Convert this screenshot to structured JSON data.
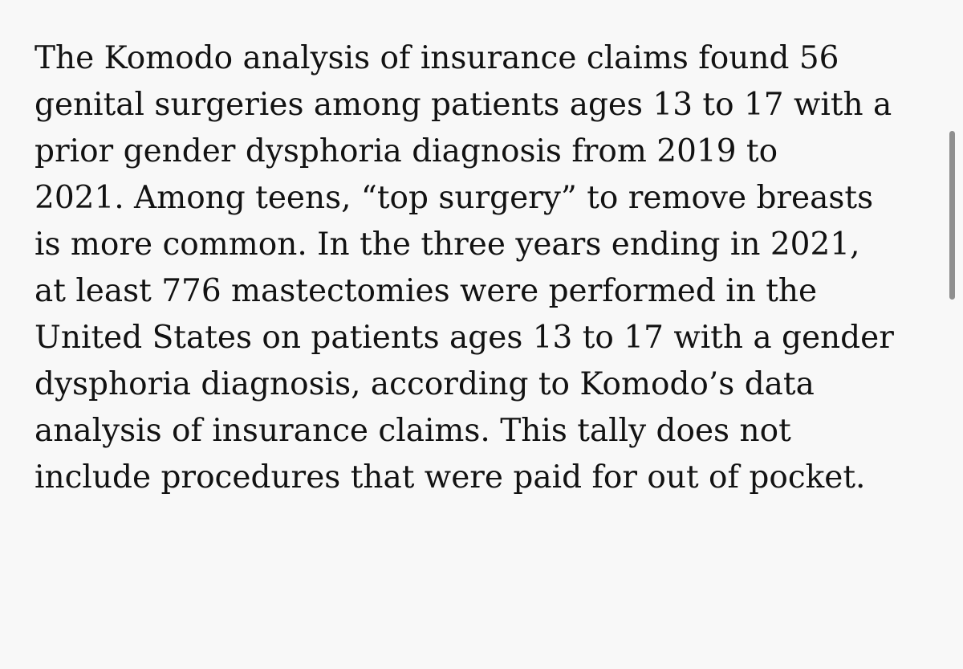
{
  "article": {
    "paragraph_lines": [
      "The Komodo analysis of insurance claims found 56",
      "genital surgeries among patients ages 13 to 17 with a",
      "prior gender dysphoria diagnosis from 2019 to",
      "2021. Among teens, “top surgery” to remove breasts",
      "is more common. In the three years ending in 2021,",
      "at least 776 mastectomies were performed in the",
      "United States on patients ages 13 to 17 with a gender",
      "dysphoria diagnosis, according to Komodo’s data",
      "analysis of insurance claims. This tally does not",
      "include procedures that were paid for out of pocket."
    ]
  }
}
